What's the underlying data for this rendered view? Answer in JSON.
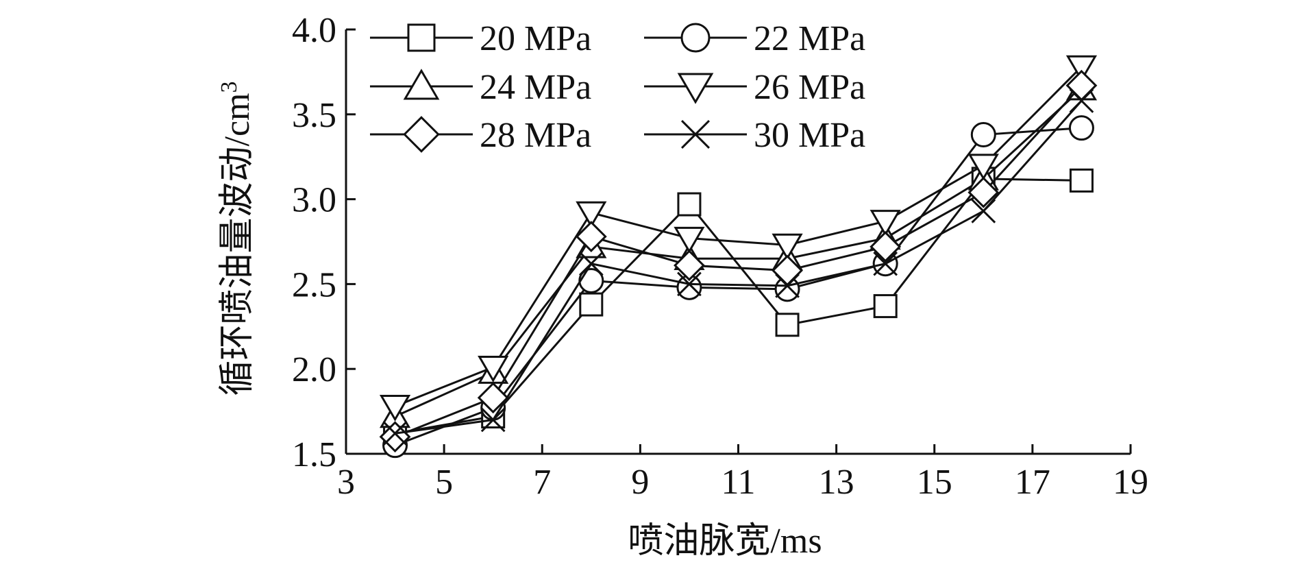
{
  "chart_data": {
    "type": "line",
    "title": "",
    "xlabel": "喷油脉宽/ms",
    "ylabel": "循环喷油量波动/cm",
    "ylabel_superscript": "3",
    "xlim": [
      3,
      19
    ],
    "ylim": [
      1.5,
      4.0
    ],
    "xticks": [
      "3",
      "5",
      "7",
      "9",
      "11",
      "13",
      "15",
      "17",
      "19"
    ],
    "yticks": [
      "1.5",
      "2.0",
      "2.5",
      "3.0",
      "3.5",
      "4.0"
    ],
    "grid": false,
    "legend_position": "top-right",
    "x": [
      4,
      6,
      8,
      10,
      12,
      14,
      16,
      18
    ],
    "series": [
      {
        "name": "20 MPa",
        "marker": "square",
        "values": [
          1.62,
          1.72,
          2.38,
          2.97,
          2.26,
          2.37,
          3.12,
          3.11
        ]
      },
      {
        "name": "22 MPa",
        "marker": "circle",
        "values": [
          1.55,
          1.77,
          2.52,
          2.48,
          2.47,
          2.62,
          3.38,
          3.42
        ]
      },
      {
        "name": "24 MPa",
        "marker": "triangle-up",
        "values": [
          1.72,
          1.98,
          2.72,
          2.65,
          2.65,
          2.77,
          3.12,
          3.65
        ]
      },
      {
        "name": "26 MPa",
        "marker": "triangle-down",
        "values": [
          1.78,
          2.01,
          2.92,
          2.77,
          2.73,
          2.87,
          3.2,
          3.78
        ]
      },
      {
        "name": "28 MPa",
        "marker": "diamond",
        "values": [
          1.6,
          1.83,
          2.78,
          2.61,
          2.58,
          2.72,
          3.04,
          3.67
        ]
      },
      {
        "name": "30 MPa",
        "marker": "x",
        "values": [
          1.62,
          1.7,
          2.62,
          2.5,
          2.49,
          2.62,
          2.93,
          3.58
        ]
      }
    ]
  }
}
